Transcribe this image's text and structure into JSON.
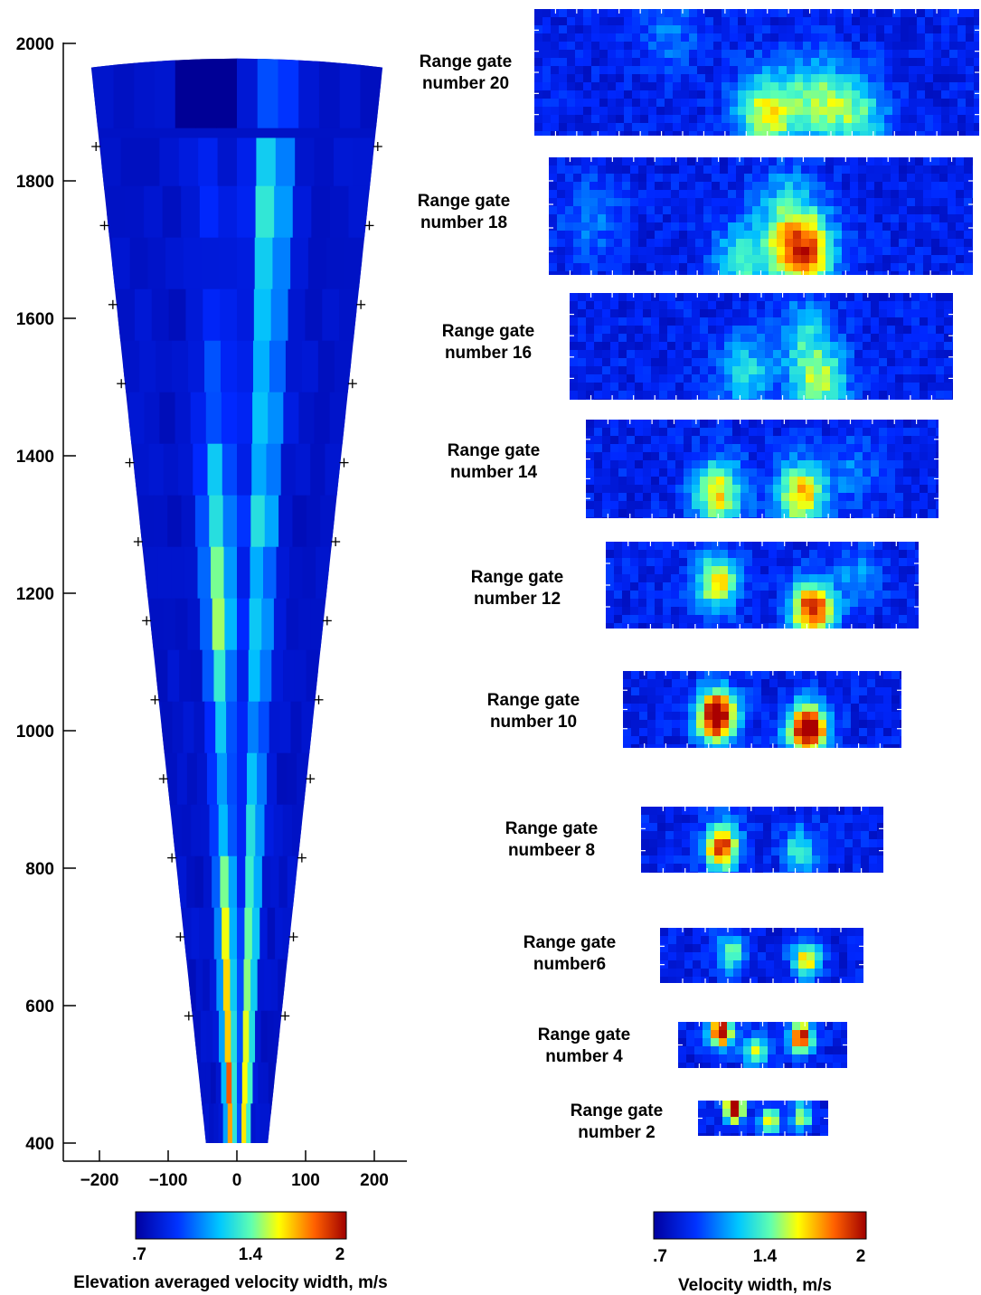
{
  "chart_data": [
    {
      "type": "heatmap",
      "description_kind": "fan-shaped beam cross-section",
      "x_ticks": [
        "-200",
        "-100",
        "0",
        "100",
        "200"
      ],
      "x_tick_values": [
        -200,
        -100,
        0,
        100,
        200
      ],
      "y_ticks": [
        "2000",
        "1800",
        "1600",
        "1400",
        "1200",
        "1000",
        "800",
        "600",
        "400"
      ],
      "y_tick_values": [
        2000,
        1800,
        1600,
        1400,
        1200,
        1000,
        800,
        600,
        400
      ],
      "xlim": [
        -250,
        250
      ],
      "ylim": [
        375,
        2030
      ],
      "range_gate_rows": [
        {
          "y": 1915,
          "left": -0.4,
          "right": 0.15
        },
        {
          "y": 1825,
          "left": 0.05,
          "right": 0.35
        },
        {
          "y": 1755,
          "left": 0.1,
          "right": 0.4
        },
        {
          "y": 1680,
          "left": 0.05,
          "right": 0.35
        },
        {
          "y": 1605,
          "left": 0.1,
          "right": 0.35
        },
        {
          "y": 1530,
          "left": 0.15,
          "right": 0.3
        },
        {
          "y": 1455,
          "left": 0.15,
          "right": 0.35
        },
        {
          "y": 1380,
          "left": 0.3,
          "right": 0.3
        },
        {
          "y": 1305,
          "left": 0.35,
          "right": 0.4
        },
        {
          "y": 1230,
          "left": 0.45,
          "right": 0.3
        },
        {
          "y": 1155,
          "left": 0.5,
          "right": 0.35
        },
        {
          "y": 1080,
          "left": 0.4,
          "right": 0.35
        },
        {
          "y": 1005,
          "left": 0.3,
          "right": 0.25
        },
        {
          "y": 930,
          "left": 0.25,
          "right": 0.35
        },
        {
          "y": 855,
          "left": 0.3,
          "right": 0.4
        },
        {
          "y": 780,
          "left": 0.45,
          "right": 0.45
        },
        {
          "y": 705,
          "left": 0.55,
          "right": 0.5
        },
        {
          "y": 630,
          "left": 0.6,
          "right": 0.55
        },
        {
          "y": 555,
          "left": 0.65,
          "right": 0.6
        },
        {
          "y": 480,
          "left": 0.75,
          "right": 0.65
        },
        {
          "y": 420,
          "left": 0.7,
          "right": 0.65
        }
      ],
      "colorbar": {
        "ticks": [
          ".7",
          "1.4",
          "2"
        ],
        "tick_values": [
          0.7,
          1.4,
          2.0
        ],
        "label": "Elevation averaged velocity width, m/s"
      }
    },
    {
      "type": "heatmap",
      "description_kind": "range gate panels",
      "panels": [
        {
          "label_line1": "Range gate",
          "label_line2": "number 20",
          "hotspots": [
            [
              0.52,
              0.8,
              0.5
            ],
            [
              0.63,
              0.7,
              0.35
            ],
            [
              0.72,
              0.82,
              0.35
            ],
            [
              0.3,
              0.15,
              0.15
            ]
          ]
        },
        {
          "label_line1": "Range gate",
          "label_line2": "number 18",
          "hotspots": [
            [
              0.59,
              0.78,
              0.75
            ],
            [
              0.45,
              0.85,
              0.35
            ],
            [
              0.55,
              0.4,
              0.25
            ],
            [
              0.1,
              0.5,
              0.15
            ]
          ]
        },
        {
          "label_line1": "Range gate",
          "label_line2": "number 16",
          "hotspots": [
            [
              0.64,
              0.78,
              0.45
            ],
            [
              0.45,
              0.7,
              0.3
            ],
            [
              0.6,
              0.35,
              0.25
            ]
          ]
        },
        {
          "label_line1": "Range gate",
          "label_line2": "number 14",
          "hotspots": [
            [
              0.37,
              0.7,
              0.55
            ],
            [
              0.6,
              0.72,
              0.6
            ],
            [
              0.75,
              0.5,
              0.15
            ]
          ]
        },
        {
          "label_line1": "Range gate",
          "label_line2": "number 12",
          "hotspots": [
            [
              0.35,
              0.45,
              0.55
            ],
            [
              0.65,
              0.75,
              0.8
            ],
            [
              0.8,
              0.4,
              0.2
            ]
          ]
        },
        {
          "label_line1": "Range gate",
          "label_line2": "number 10",
          "hotspots": [
            [
              0.33,
              0.55,
              1.0
            ],
            [
              0.65,
              0.72,
              1.0
            ]
          ]
        },
        {
          "label_line1": "Range gate",
          "label_line2": "numbeer 8",
          "hotspots": [
            [
              0.33,
              0.55,
              0.8
            ],
            [
              0.65,
              0.6,
              0.35
            ]
          ]
        },
        {
          "label_line1": "Range gate",
          "label_line2": "number6",
          "hotspots": [
            [
              0.35,
              0.45,
              0.45
            ],
            [
              0.72,
              0.55,
              0.55
            ]
          ]
        },
        {
          "label_line1": "Range gate",
          "label_line2": "number 4",
          "hotspots": [
            [
              0.25,
              0.2,
              0.95
            ],
            [
              0.72,
              0.3,
              0.85
            ],
            [
              0.45,
              0.6,
              0.5
            ]
          ]
        },
        {
          "label_line1": "Range gate",
          "label_line2": "number 2",
          "hotspots": [
            [
              0.28,
              0.2,
              1.0
            ],
            [
              0.55,
              0.5,
              0.6
            ],
            [
              0.8,
              0.4,
              0.55
            ]
          ]
        }
      ],
      "colorbar": {
        "ticks": [
          ".7",
          "1.4",
          "2"
        ],
        "tick_values": [
          0.7,
          1.4,
          2.0
        ],
        "label": "Velocity width, m/s"
      }
    }
  ]
}
